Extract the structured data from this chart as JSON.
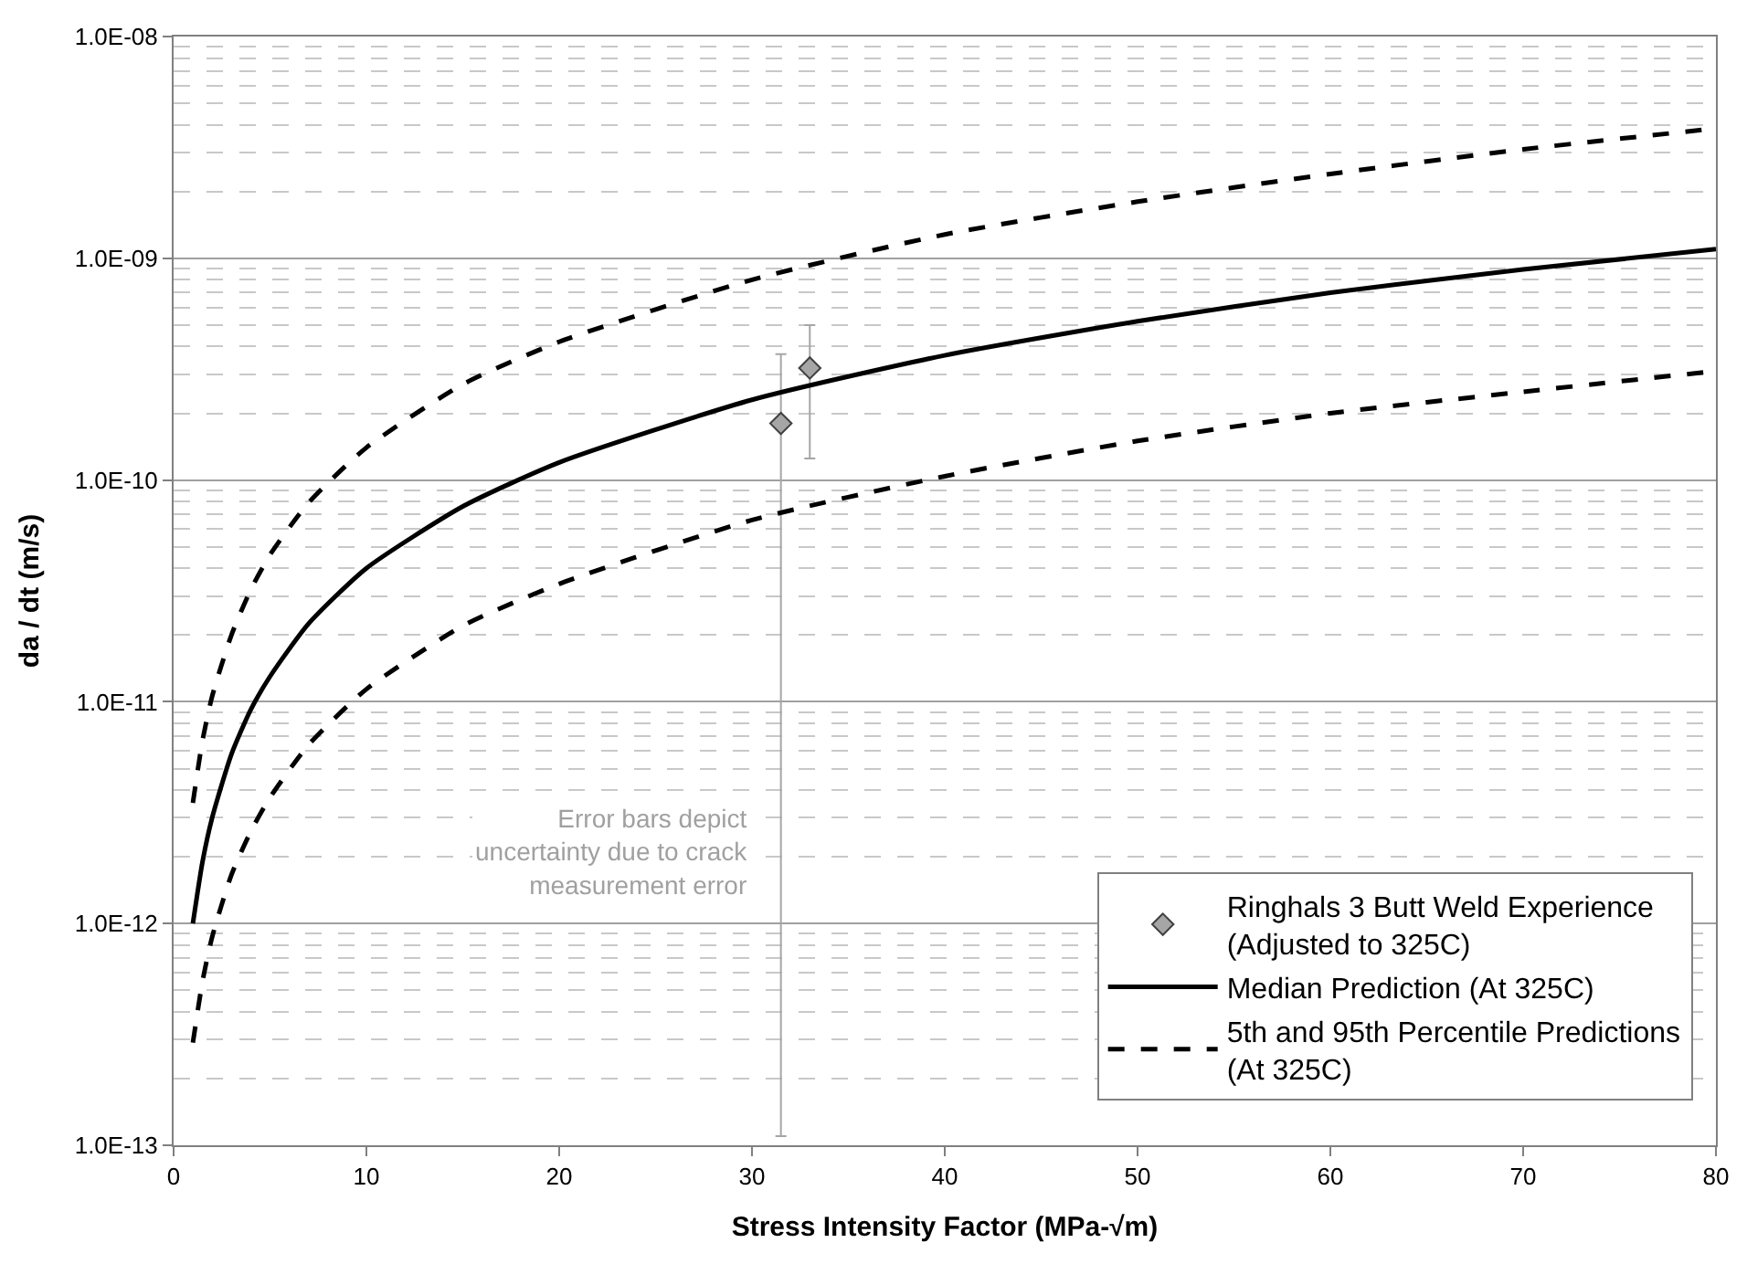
{
  "chart_data": {
    "type": "line",
    "xlabel": "Stress Intensity Factor (MPa-√m)",
    "ylabel": "da / dt (m/s)",
    "xlim": [
      0,
      80
    ],
    "xticks": [
      0,
      10,
      20,
      30,
      40,
      50,
      60,
      70,
      80
    ],
    "ylim": [
      1e-13,
      1e-08
    ],
    "yticks": [
      {
        "value": 1e-13,
        "label": "1.0E-13"
      },
      {
        "value": 1e-12,
        "label": "1.0E-12"
      },
      {
        "value": 1e-11,
        "label": "1.0E-11"
      },
      {
        "value": 1e-10,
        "label": "1.0E-10"
      },
      {
        "value": 1e-09,
        "label": "1.0E-09"
      },
      {
        "value": 1e-08,
        "label": "1.0E-08"
      }
    ],
    "log": "y",
    "grid": "y",
    "legend": "bottom right",
    "series": [
      {
        "name": "Ringhals 3 Butt Weld Experience\n(Adjusted to 325C)",
        "type": "scatter",
        "marker": "diamond",
        "color": "#a6a6a6",
        "x": [
          31.5,
          33
        ],
        "values": [
          1.8e-10,
          3.2e-10
        ],
        "errors": [
          [
            1.1e-13,
            3.7e-10
          ],
          [
            1.25e-10,
            5e-10
          ]
        ]
      },
      {
        "name": "Median Prediction (At 325C)",
        "line_style": "solid",
        "color": "#000000",
        "x": [
          1,
          1.5,
          2,
          3,
          4,
          5,
          7,
          10,
          15,
          20,
          30,
          40,
          50,
          60,
          70,
          80
        ],
        "values": [
          1e-12,
          1.9e-12,
          3e-12,
          5.8e-12,
          9.2e-12,
          1.3e-11,
          2.25e-11,
          4e-11,
          7.6e-11,
          1.2e-10,
          2.3e-10,
          3.65e-10,
          5.2e-10,
          7e-10,
          8.9e-10,
          1.1e-09
        ]
      },
      {
        "name": "5th and 95th Percentile Predictions\n(At 325C)",
        "line_style": "dashed",
        "color": "#000000",
        "x": [
          1,
          1.5,
          2,
          3,
          4,
          5,
          7,
          10,
          15,
          20,
          30,
          40,
          50,
          60,
          70,
          80
        ],
        "values": [
          2.9e-13,
          5.5e-13,
          8.7e-13,
          1.66e-12,
          2.6e-12,
          3.7e-12,
          6.4e-12,
          1.14e-11,
          2.2e-11,
          3.4e-11,
          6.6e-11,
          1.04e-10,
          1.5e-10,
          2e-10,
          2.5e-10,
          3.1e-10
        ]
      },
      {
        "line_style": "dashed",
        "color": "#000000",
        "x": [
          1,
          1.5,
          2,
          3,
          4,
          5,
          7,
          10,
          15,
          20,
          30,
          40,
          50,
          60,
          70,
          80
        ],
        "values": [
          3.5e-12,
          6.7e-12,
          1.06e-11,
          2e-11,
          3.2e-11,
          4.6e-11,
          7.9e-11,
          1.4e-10,
          2.7e-10,
          4.2e-10,
          8e-10,
          1.28e-09,
          1.8e-09,
          2.4e-09,
          3.1e-09,
          3.85e-09
        ]
      }
    ],
    "annotations": [
      "Error bars depict\nuncertainty due to crack\nmeasurement error"
    ]
  }
}
